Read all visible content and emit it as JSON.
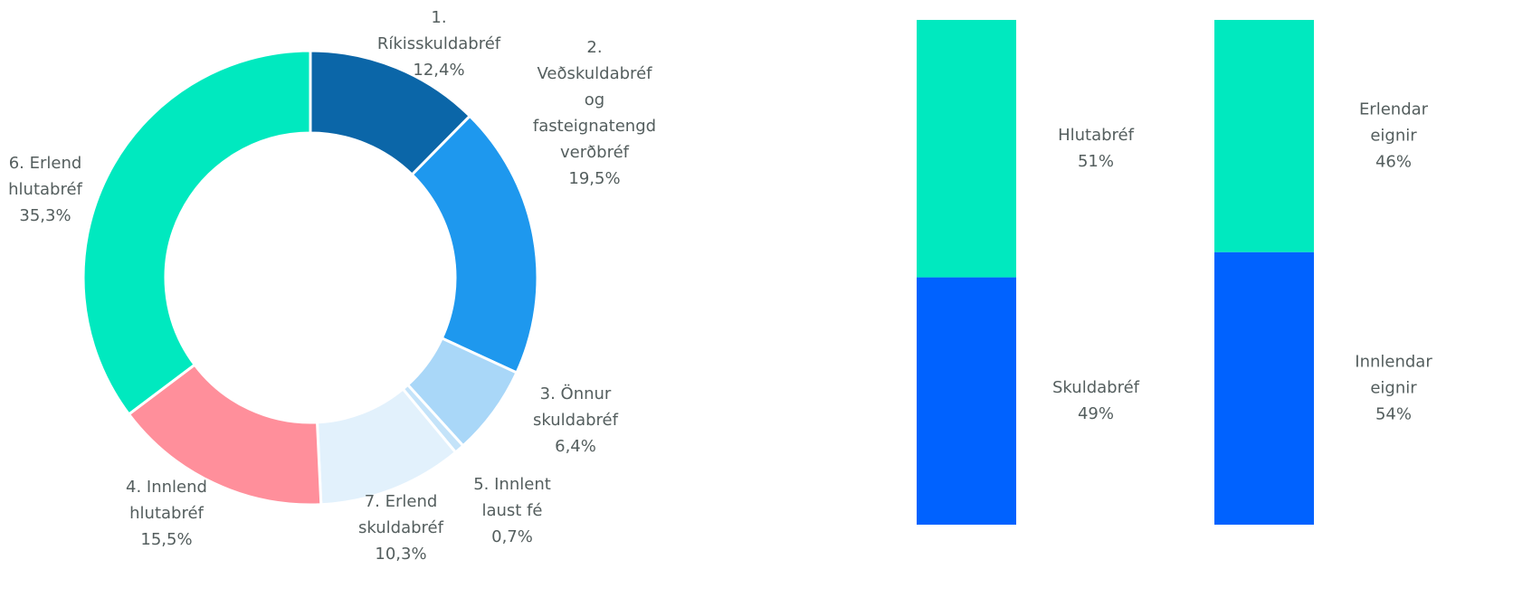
{
  "chart_data": [
    {
      "type": "donut",
      "categories": [
        "1. Ríkisskuldabréf",
        "2. Veðskuldabréf og fasteignatengd verðbréf",
        "3. Önnur skuldabréf",
        "5. Innlent laust fé",
        "7. Erlend skuldabréf",
        "4. Innlend hlutabréf",
        "6. Erlend hlutabréf"
      ],
      "values": [
        12.4,
        19.5,
        6.4,
        0.7,
        10.3,
        15.5,
        35.3
      ],
      "value_labels": [
        "12,4%",
        "19,5%",
        "6,4%",
        "0,7%",
        "10,3%",
        "15,5%",
        "35,3%"
      ],
      "colors": [
        "#0b66a8",
        "#1e98ee",
        "#a9d7f8",
        "#c4e3f9",
        "#e2f1fc",
        "#ff8f9b",
        "#00e9bf"
      ]
    },
    {
      "type": "stacked_bar",
      "series": [
        {
          "name": "Skuldabréf",
          "color": "#0062ff",
          "values": [
            49
          ],
          "value_labels": [
            "49%"
          ]
        },
        {
          "name": "Hlutabréf",
          "color": "#00e9bf",
          "values": [
            51
          ],
          "value_labels": [
            "51%"
          ]
        }
      ]
    },
    {
      "type": "stacked_bar",
      "series": [
        {
          "name": "Innlendar eignir",
          "color": "#0062ff",
          "values": [
            54
          ],
          "value_labels": [
            "54%"
          ]
        },
        {
          "name": "Erlendar eignir",
          "color": "#00e9bf",
          "values": [
            46
          ],
          "value_labels": [
            "46%"
          ]
        }
      ]
    }
  ]
}
